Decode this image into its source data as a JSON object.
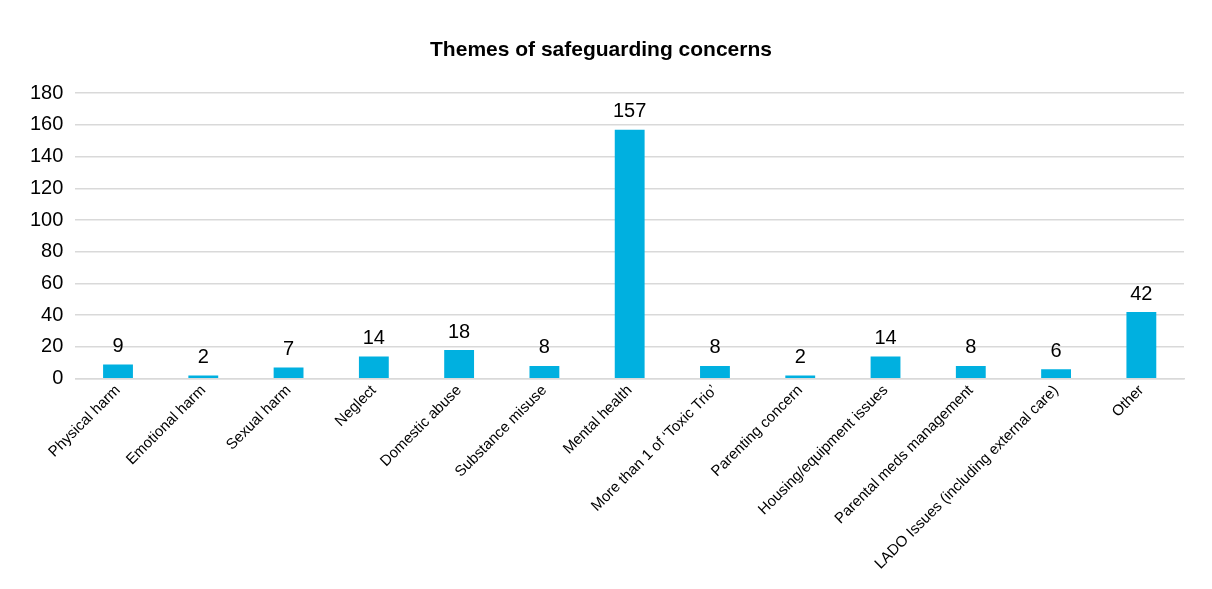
{
  "chart_data": {
    "type": "bar",
    "title": "Themes of safeguarding concerns",
    "categories": [
      "Physical harm",
      "Emotional harm",
      "Sexual harm",
      "Neglect",
      "Domestic abuse",
      "Substance misuse",
      "Mental health",
      "More than 1 of ‘Toxic Trio’",
      "Parenting concern",
      "Housing/equipment issues",
      "Parental meds management",
      "LADO Issues (including external care)",
      "Other"
    ],
    "values": [
      9,
      2,
      7,
      14,
      18,
      8,
      157,
      8,
      2,
      14,
      8,
      6,
      42
    ],
    "color": "#00b0e0",
    "ylim": [
      0,
      180
    ],
    "yticks": [
      0,
      20,
      40,
      60,
      80,
      100,
      120,
      140,
      160,
      180
    ],
    "grid": "y",
    "data_labels": true
  }
}
